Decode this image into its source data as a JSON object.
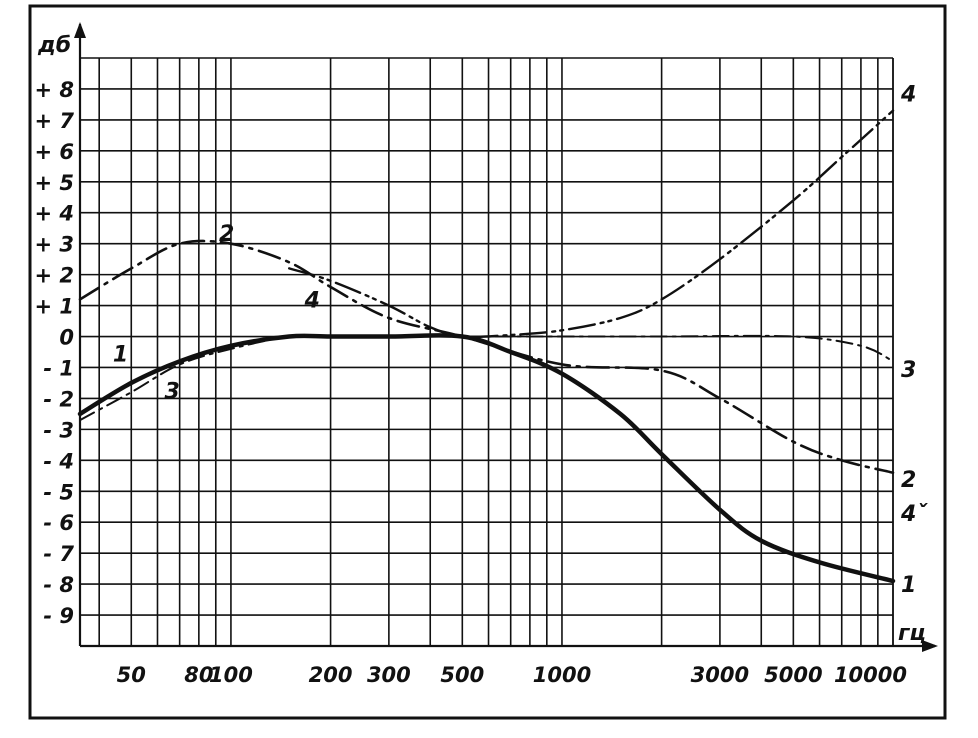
{
  "chart_data": {
    "type": "line",
    "title": "",
    "ylabel": "дб",
    "xlabel": "гц",
    "x_scale": "log",
    "xlim": [
      35,
      10000
    ],
    "ylim": [
      -10,
      9
    ],
    "grid": true,
    "y_ticks": [
      {
        "value": 8,
        "label": "+ 8"
      },
      {
        "value": 7,
        "label": "+ 7"
      },
      {
        "value": 6,
        "label": "+ 6"
      },
      {
        "value": 5,
        "label": "+ 5"
      },
      {
        "value": 4,
        "label": "+ 4"
      },
      {
        "value": 3,
        "label": "+ 3"
      },
      {
        "value": 2,
        "label": "+ 2"
      },
      {
        "value": 1,
        "label": "+ 1"
      },
      {
        "value": 0,
        "label": "0"
      },
      {
        "value": -1,
        "label": "- 1"
      },
      {
        "value": -2,
        "label": "- 2"
      },
      {
        "value": -3,
        "label": "- 3"
      },
      {
        "value": -4,
        "label": "- 4"
      },
      {
        "value": -5,
        "label": "- 5"
      },
      {
        "value": -6,
        "label": "- 6"
      },
      {
        "value": -7,
        "label": "- 7"
      },
      {
        "value": -8,
        "label": "- 8"
      },
      {
        "value": -9,
        "label": "- 9"
      }
    ],
    "x_ticks": [
      {
        "value": 50,
        "label": "50"
      },
      {
        "value": 80,
        "label": "80"
      },
      {
        "value": 100,
        "label": "100"
      },
      {
        "value": 200,
        "label": "200"
      },
      {
        "value": 300,
        "label": "300"
      },
      {
        "value": 500,
        "label": "500"
      },
      {
        "value": 1000,
        "label": "1000"
      },
      {
        "value": 3000,
        "label": "3000"
      },
      {
        "value": 5000,
        "label": "5000"
      },
      {
        "value": 10000,
        "label": "10000"
      }
    ],
    "x_gridlines": [
      40,
      50,
      60,
      70,
      80,
      90,
      100,
      200,
      300,
      400,
      500,
      600,
      700,
      800,
      900,
      1000,
      2000,
      3000,
      4000,
      5000,
      6000,
      7000,
      8000,
      9000,
      10000
    ],
    "series": [
      {
        "name": "1",
        "style": "solid",
        "x": [
          35,
          50,
          70,
          100,
          150,
          200,
          300,
          500,
          700,
          1000,
          1500,
          2000,
          3000,
          4000,
          6000,
          10000
        ],
        "y": [
          -2.5,
          -1.5,
          -0.8,
          -0.3,
          0,
          0,
          0,
          0,
          -0.5,
          -1.2,
          -2.5,
          -3.8,
          -5.6,
          -6.6,
          -7.3,
          -7.9
        ]
      },
      {
        "name": "2",
        "style": "dash-dot",
        "x": [
          35,
          50,
          70,
          100,
          150,
          200,
          300,
          500,
          1000,
          2000,
          3000,
          5000,
          7000,
          10000
        ],
        "y": [
          1.2,
          2.2,
          3.0,
          3.0,
          2.4,
          1.6,
          0.6,
          0,
          -0.9,
          -1.1,
          -2.0,
          -3.4,
          -4.0,
          -4.4
        ]
      },
      {
        "name": "3",
        "style": "dash-dot-light",
        "x": [
          35,
          50,
          70,
          100,
          150,
          200,
          300,
          500,
          1000,
          2000,
          5000,
          8000,
          10000
        ],
        "y": [
          -2.7,
          -1.8,
          -0.9,
          -0.4,
          0,
          0,
          0,
          0,
          0,
          0,
          0,
          -0.3,
          -0.8
        ]
      },
      {
        "name": "4",
        "style": "dash-double-dot",
        "x": [
          150,
          200,
          300,
          400,
          500,
          700,
          1000,
          1500,
          2000,
          3000,
          5000,
          7000,
          10000
        ],
        "y": [
          2.2,
          1.8,
          1.0,
          0.3,
          0,
          0.05,
          0.2,
          0.6,
          1.2,
          2.5,
          4.4,
          5.8,
          7.3
        ]
      }
    ],
    "curve_labels": [
      {
        "text": "1",
        "series": "1",
        "x": 44,
        "y": -0.55
      },
      {
        "text": "2",
        "series": "2",
        "x": 92,
        "y": 3.35
      },
      {
        "text": "3",
        "series": "3",
        "x": 63,
        "y": -1.75
      },
      {
        "text": "4",
        "series": "4",
        "x": 167,
        "y": 1.2
      },
      {
        "text": "4",
        "series": "4",
        "x": 10000,
        "y": 7.85
      },
      {
        "text": "3",
        "series": "3",
        "x": 10000,
        "y": -1.05
      },
      {
        "text": "2",
        "series": "2",
        "x": 10000,
        "y": -4.6
      },
      {
        "text": "4ˇ",
        "series": "4",
        "x": 10000,
        "y": -5.7
      },
      {
        "text": "1",
        "series": "1",
        "x": 10000,
        "y": -8.0
      }
    ]
  }
}
